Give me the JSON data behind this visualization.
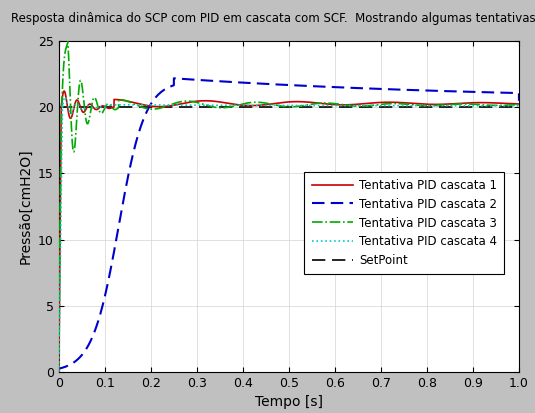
{
  "title": "Resposta dinâmica do SCP com PID em cascata com SCF.  Mostrando algumas tentativas",
  "xlabel": "Tempo [s]",
  "ylabel": "Pressão[cmH2O]",
  "xlim": [
    0,
    1
  ],
  "ylim": [
    0,
    25
  ],
  "setpoint": 20,
  "background_color": "#c0c0c0",
  "axes_bg_color": "#ffffff",
  "legend_entries": [
    "Tentativa PID cascata 1",
    "Tentativa PID cascata 2",
    "Tentativa PID cascata 3",
    "Tentativa PID cascata 4",
    "SetPoint"
  ],
  "line_colors": [
    "#cc0000",
    "#0000cc",
    "#00aa00",
    "#00cccc",
    "#000000"
  ],
  "line_styles": [
    "-",
    "--",
    "-.",
    ":",
    "--"
  ],
  "line_widths": [
    1.2,
    1.5,
    1.2,
    1.2,
    1.2
  ],
  "xticks": [
    0,
    0.1,
    0.2,
    0.3,
    0.4,
    0.5,
    0.6,
    0.7,
    0.8,
    0.9,
    1.0
  ],
  "yticks": [
    0,
    5,
    10,
    15,
    20,
    25
  ]
}
